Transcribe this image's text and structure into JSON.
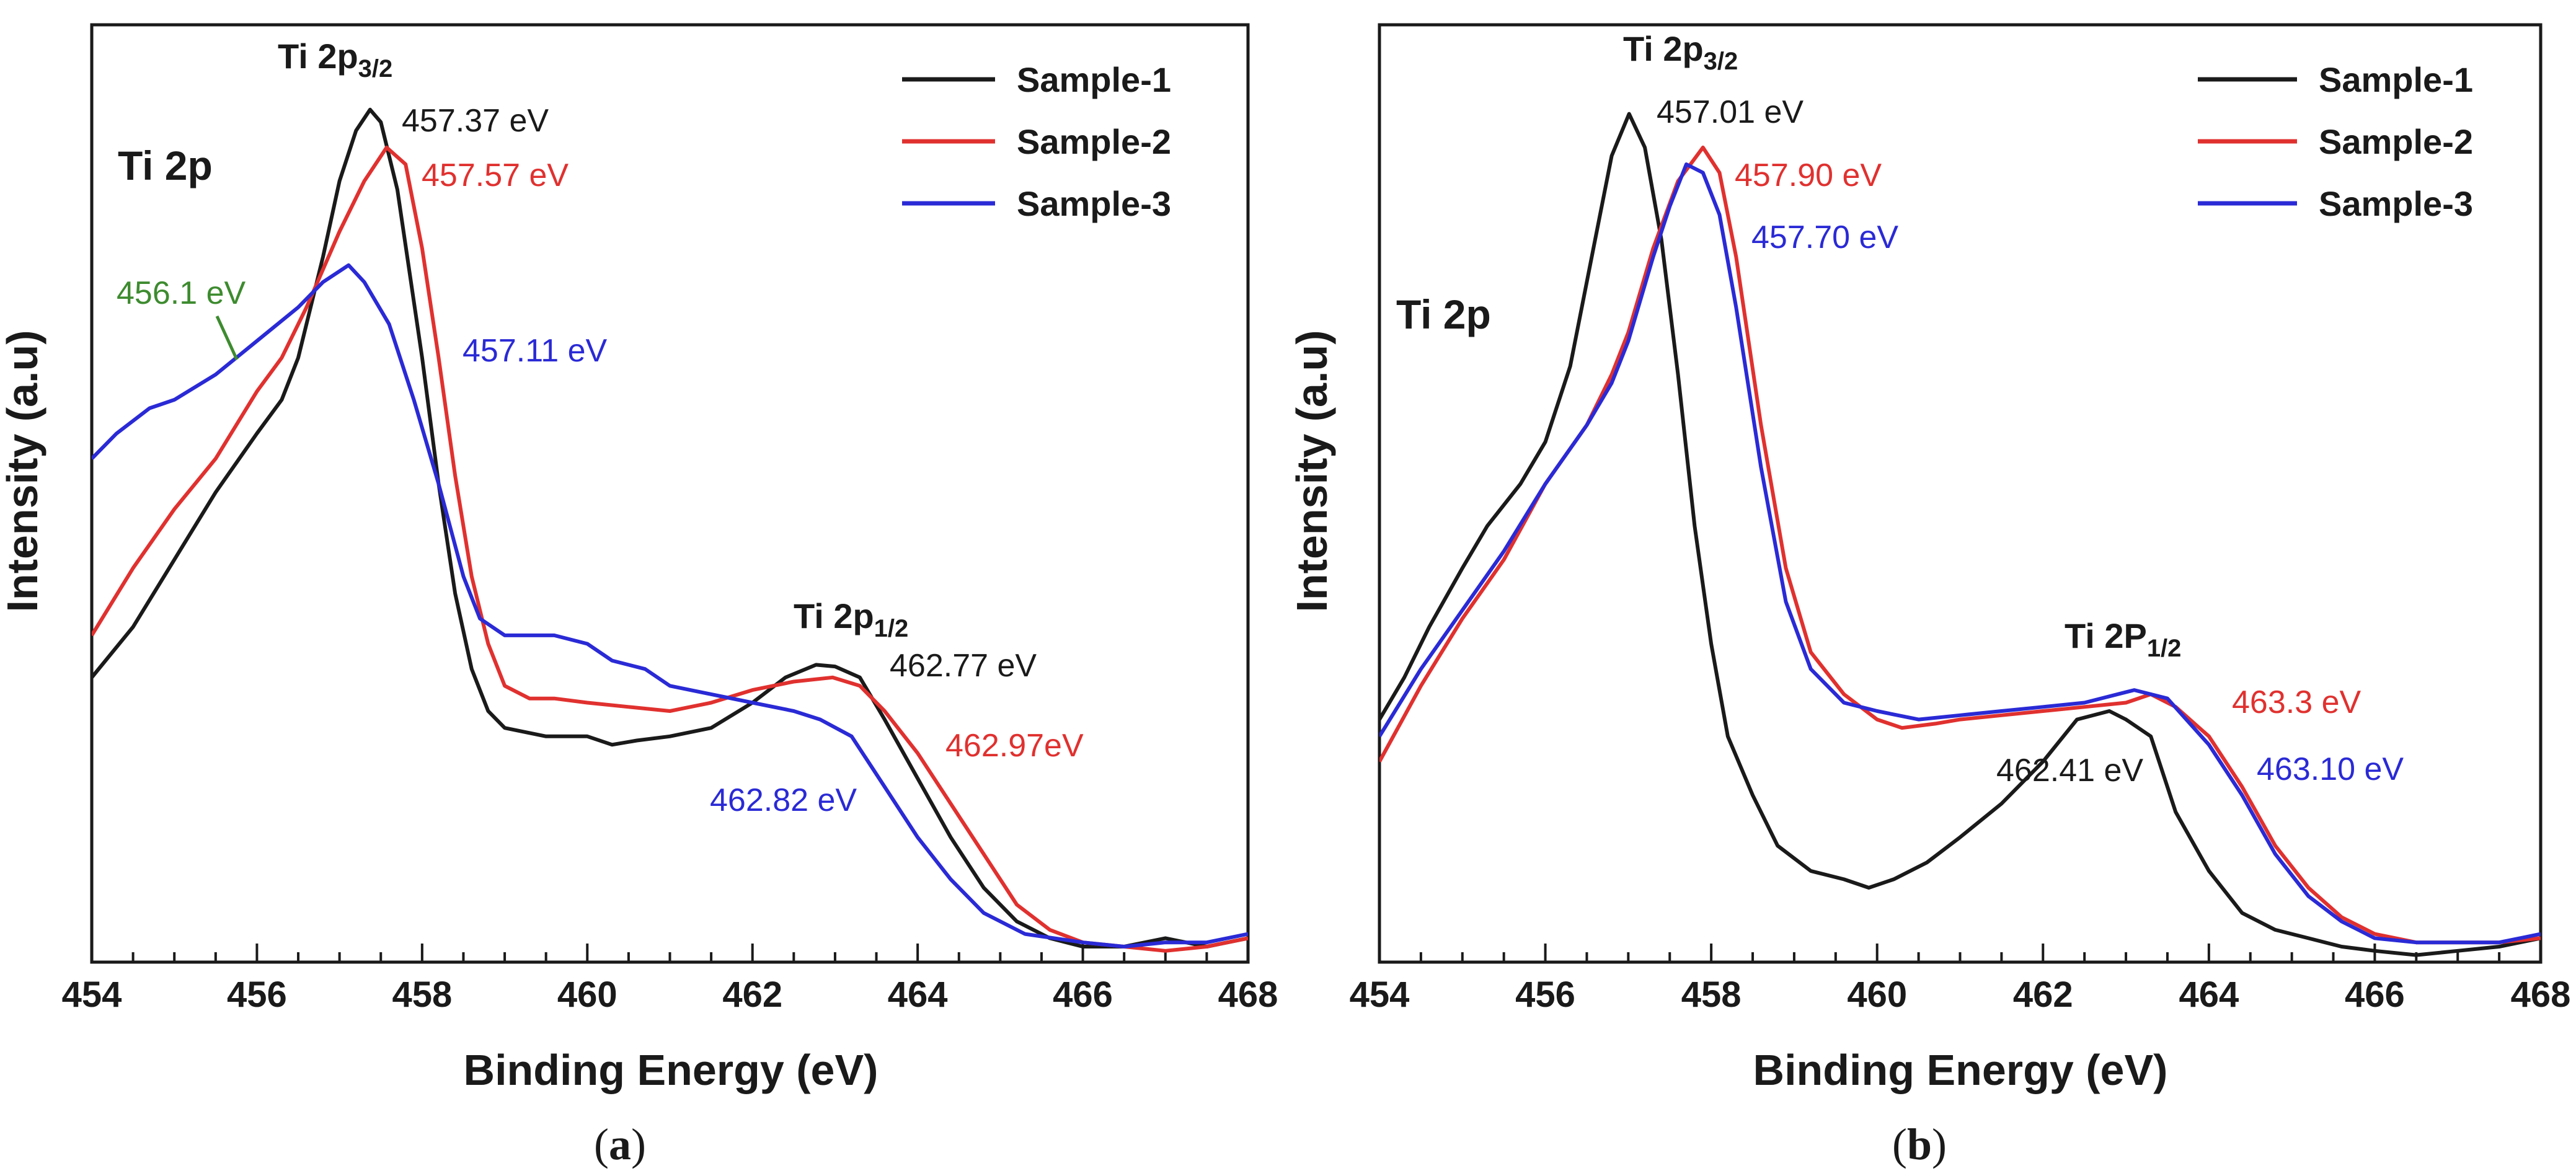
{
  "chart_data": [
    {
      "type": "line",
      "panel": "a",
      "caption_letter": "a",
      "title": "Ti 2p",
      "xlabel": "Binding Energy (eV)",
      "ylabel": "Intensity (a.u)",
      "xlim": [
        454,
        468
      ],
      "ylim": [
        0,
        1.0
      ],
      "xticks": [
        "454",
        "456",
        "458",
        "460",
        "462",
        "464",
        "466",
        "468"
      ],
      "legend_position": "top-right",
      "peak_labels": {
        "p32": {
          "main": "Ti 2p",
          "sub": "3/2",
          "x": 457.4,
          "y": 1.0
        },
        "p12": {
          "main": "Ti 2p",
          "sub": "1/2",
          "x": 462.8,
          "y": 0.43
        }
      },
      "series": [
        {
          "name": "Sample-1",
          "color": "#1a1a1a",
          "points": [
            [
              454.0,
              0.32
            ],
            [
              454.5,
              0.38
            ],
            [
              455.0,
              0.46
            ],
            [
              455.5,
              0.54
            ],
            [
              456.0,
              0.61
            ],
            [
              456.3,
              0.65
            ],
            [
              456.5,
              0.7
            ],
            [
              456.8,
              0.82
            ],
            [
              457.0,
              0.91
            ],
            [
              457.2,
              0.97
            ],
            [
              457.37,
              0.995
            ],
            [
              457.5,
              0.98
            ],
            [
              457.7,
              0.9
            ],
            [
              458.0,
              0.7
            ],
            [
              458.2,
              0.55
            ],
            [
              458.4,
              0.42
            ],
            [
              458.6,
              0.33
            ],
            [
              458.8,
              0.28
            ],
            [
              459.0,
              0.26
            ],
            [
              459.5,
              0.25
            ],
            [
              460.0,
              0.25
            ],
            [
              460.3,
              0.24
            ],
            [
              460.6,
              0.245
            ],
            [
              461.0,
              0.25
            ],
            [
              461.5,
              0.26
            ],
            [
              462.0,
              0.29
            ],
            [
              462.4,
              0.32
            ],
            [
              462.77,
              0.335
            ],
            [
              463.0,
              0.333
            ],
            [
              463.3,
              0.32
            ],
            [
              463.6,
              0.27
            ],
            [
              464.0,
              0.2
            ],
            [
              464.4,
              0.13
            ],
            [
              464.8,
              0.07
            ],
            [
              465.2,
              0.03
            ],
            [
              465.6,
              0.01
            ],
            [
              466.0,
              0.0
            ],
            [
              466.5,
              0.0
            ],
            [
              467.0,
              0.01
            ],
            [
              467.5,
              0.0
            ],
            [
              468.0,
              0.01
            ]
          ]
        },
        {
          "name": "Sample-2",
          "color": "#e0312f",
          "points": [
            [
              454.0,
              0.37
            ],
            [
              454.5,
              0.45
            ],
            [
              455.0,
              0.52
            ],
            [
              455.5,
              0.58
            ],
            [
              456.0,
              0.66
            ],
            [
              456.3,
              0.7
            ],
            [
              456.6,
              0.76
            ],
            [
              457.0,
              0.85
            ],
            [
              457.3,
              0.91
            ],
            [
              457.57,
              0.95
            ],
            [
              457.8,
              0.93
            ],
            [
              458.0,
              0.83
            ],
            [
              458.2,
              0.7
            ],
            [
              458.4,
              0.56
            ],
            [
              458.6,
              0.44
            ],
            [
              458.8,
              0.36
            ],
            [
              459.0,
              0.31
            ],
            [
              459.3,
              0.295
            ],
            [
              459.6,
              0.295
            ],
            [
              460.0,
              0.29
            ],
            [
              460.5,
              0.285
            ],
            [
              461.0,
              0.28
            ],
            [
              461.5,
              0.29
            ],
            [
              462.0,
              0.305
            ],
            [
              462.5,
              0.315
            ],
            [
              462.97,
              0.32
            ],
            [
              463.3,
              0.31
            ],
            [
              463.6,
              0.28
            ],
            [
              464.0,
              0.23
            ],
            [
              464.4,
              0.17
            ],
            [
              464.8,
              0.11
            ],
            [
              465.2,
              0.05
            ],
            [
              465.6,
              0.02
            ],
            [
              466.0,
              0.005
            ],
            [
              466.5,
              0.0
            ],
            [
              467.0,
              -0.005
            ],
            [
              467.5,
              0.0
            ],
            [
              468.0,
              0.01
            ]
          ]
        },
        {
          "name": "Sample-3",
          "color": "#2a2ad6",
          "points": [
            [
              454.0,
              0.58
            ],
            [
              454.3,
              0.61
            ],
            [
              454.7,
              0.64
            ],
            [
              455.0,
              0.65
            ],
            [
              455.5,
              0.68
            ],
            [
              456.0,
              0.72
            ],
            [
              456.5,
              0.76
            ],
            [
              456.8,
              0.79
            ],
            [
              457.11,
              0.81
            ],
            [
              457.3,
              0.79
            ],
            [
              457.6,
              0.74
            ],
            [
              457.9,
              0.65
            ],
            [
              458.2,
              0.55
            ],
            [
              458.5,
              0.44
            ],
            [
              458.7,
              0.39
            ],
            [
              459.0,
              0.37
            ],
            [
              459.3,
              0.37
            ],
            [
              459.6,
              0.37
            ],
            [
              460.0,
              0.36
            ],
            [
              460.3,
              0.34
            ],
            [
              460.7,
              0.33
            ],
            [
              461.0,
              0.31
            ],
            [
              461.5,
              0.3
            ],
            [
              462.0,
              0.29
            ],
            [
              462.5,
              0.28
            ],
            [
              462.82,
              0.27
            ],
            [
              463.2,
              0.25
            ],
            [
              463.6,
              0.19
            ],
            [
              464.0,
              0.13
            ],
            [
              464.4,
              0.08
            ],
            [
              464.8,
              0.04
            ],
            [
              465.3,
              0.015
            ],
            [
              466.0,
              0.005
            ],
            [
              466.5,
              0.0
            ],
            [
              467.0,
              0.005
            ],
            [
              467.5,
              0.005
            ],
            [
              468.0,
              0.015
            ]
          ]
        }
      ],
      "annotations": [
        {
          "text": "457.37 eV",
          "color": "#1a1a1a",
          "x": 457.37,
          "y": 0.995
        },
        {
          "text": "457.57 eV",
          "color": "#e0312f",
          "x": 457.57,
          "y": 0.95
        },
        {
          "text": "457.11 eV",
          "color": "#2a2ad6",
          "x": 458.3,
          "y": 0.7
        },
        {
          "text": "456.1 eV",
          "color": "#3d8b2f",
          "x": 455.8,
          "y": 0.68
        },
        {
          "text": "462.77 eV",
          "color": "#1a1a1a",
          "x": 462.77,
          "y": 0.335
        },
        {
          "text": "462.97eV",
          "color": "#e0312f",
          "x": 463.6,
          "y": 0.27
        },
        {
          "text": "462.82 eV",
          "color": "#2a2ad6",
          "x": 462.82,
          "y": 0.18
        }
      ]
    },
    {
      "type": "line",
      "panel": "b",
      "caption_letter": "b",
      "title": "Ti 2p",
      "xlabel": "Binding Energy (eV)",
      "ylabel": "Intensity (a.u)",
      "xlim": [
        454,
        468
      ],
      "ylim": [
        0,
        1.0
      ],
      "xticks": [
        "454",
        "456",
        "458",
        "460",
        "462",
        "464",
        "466",
        "468"
      ],
      "legend_position": "top-right",
      "peak_labels": {
        "p32": {
          "main": "Ti 2p",
          "sub": "3/2",
          "x": 457.0,
          "y": 1.0
        },
        "p12": {
          "main": "Ti 2P",
          "sub": "1/2",
          "x": 462.6,
          "y": 0.3
        }
      },
      "series": [
        {
          "name": "Sample-1",
          "color": "#1a1a1a",
          "points": [
            [
              454.0,
              0.27
            ],
            [
              454.3,
              0.32
            ],
            [
              454.6,
              0.38
            ],
            [
              455.0,
              0.45
            ],
            [
              455.3,
              0.5
            ],
            [
              455.7,
              0.55
            ],
            [
              456.0,
              0.6
            ],
            [
              456.3,
              0.69
            ],
            [
              456.6,
              0.84
            ],
            [
              456.8,
              0.94
            ],
            [
              457.01,
              0.99
            ],
            [
              457.2,
              0.95
            ],
            [
              457.4,
              0.84
            ],
            [
              457.6,
              0.68
            ],
            [
              457.8,
              0.5
            ],
            [
              458.0,
              0.36
            ],
            [
              458.2,
              0.25
            ],
            [
              458.5,
              0.18
            ],
            [
              458.8,
              0.12
            ],
            [
              459.2,
              0.09
            ],
            [
              459.6,
              0.08
            ],
            [
              459.9,
              0.07
            ],
            [
              460.2,
              0.08
            ],
            [
              460.6,
              0.1
            ],
            [
              461.0,
              0.13
            ],
            [
              461.5,
              0.17
            ],
            [
              462.0,
              0.22
            ],
            [
              462.41,
              0.27
            ],
            [
              462.8,
              0.28
            ],
            [
              463.0,
              0.27
            ],
            [
              463.3,
              0.25
            ],
            [
              463.6,
              0.16
            ],
            [
              464.0,
              0.09
            ],
            [
              464.4,
              0.04
            ],
            [
              464.8,
              0.02
            ],
            [
              465.2,
              0.01
            ],
            [
              465.6,
              0.0
            ],
            [
              466.0,
              -0.005
            ],
            [
              466.5,
              -0.01
            ],
            [
              467.0,
              -0.005
            ],
            [
              467.5,
              0.0
            ],
            [
              468.0,
              0.01
            ]
          ]
        },
        {
          "name": "Sample-2",
          "color": "#e0312f",
          "points": [
            [
              454.0,
              0.22
            ],
            [
              454.5,
              0.31
            ],
            [
              455.0,
              0.39
            ],
            [
              455.5,
              0.46
            ],
            [
              456.0,
              0.55
            ],
            [
              456.5,
              0.62
            ],
            [
              456.8,
              0.68
            ],
            [
              457.0,
              0.73
            ],
            [
              457.3,
              0.83
            ],
            [
              457.6,
              0.91
            ],
            [
              457.9,
              0.95
            ],
            [
              458.1,
              0.92
            ],
            [
              458.3,
              0.82
            ],
            [
              458.6,
              0.62
            ],
            [
              458.9,
              0.45
            ],
            [
              459.2,
              0.35
            ],
            [
              459.6,
              0.3
            ],
            [
              460.0,
              0.27
            ],
            [
              460.3,
              0.26
            ],
            [
              460.7,
              0.265
            ],
            [
              461.0,
              0.27
            ],
            [
              461.5,
              0.275
            ],
            [
              462.0,
              0.28
            ],
            [
              462.5,
              0.285
            ],
            [
              463.0,
              0.29
            ],
            [
              463.3,
              0.3
            ],
            [
              463.6,
              0.285
            ],
            [
              464.0,
              0.25
            ],
            [
              464.4,
              0.19
            ],
            [
              464.8,
              0.12
            ],
            [
              465.2,
              0.07
            ],
            [
              465.6,
              0.035
            ],
            [
              466.0,
              0.015
            ],
            [
              466.5,
              0.005
            ],
            [
              467.0,
              0.005
            ],
            [
              467.5,
              0.005
            ],
            [
              468.0,
              0.01
            ]
          ]
        },
        {
          "name": "Sample-3",
          "color": "#2a2ad6",
          "points": [
            [
              454.0,
              0.25
            ],
            [
              454.5,
              0.33
            ],
            [
              455.0,
              0.4
            ],
            [
              455.5,
              0.47
            ],
            [
              456.0,
              0.55
            ],
            [
              456.5,
              0.62
            ],
            [
              456.8,
              0.67
            ],
            [
              457.0,
              0.72
            ],
            [
              457.3,
              0.82
            ],
            [
              457.5,
              0.88
            ],
            [
              457.7,
              0.93
            ],
            [
              457.9,
              0.92
            ],
            [
              458.1,
              0.87
            ],
            [
              458.3,
              0.76
            ],
            [
              458.6,
              0.57
            ],
            [
              458.9,
              0.41
            ],
            [
              459.2,
              0.33
            ],
            [
              459.6,
              0.29
            ],
            [
              460.0,
              0.28
            ],
            [
              460.5,
              0.27
            ],
            [
              461.0,
              0.275
            ],
            [
              461.5,
              0.28
            ],
            [
              462.0,
              0.285
            ],
            [
              462.5,
              0.29
            ],
            [
              463.1,
              0.305
            ],
            [
              463.5,
              0.295
            ],
            [
              464.0,
              0.24
            ],
            [
              464.4,
              0.18
            ],
            [
              464.8,
              0.11
            ],
            [
              465.2,
              0.06
            ],
            [
              465.6,
              0.03
            ],
            [
              466.0,
              0.01
            ],
            [
              466.5,
              0.005
            ],
            [
              467.0,
              0.005
            ],
            [
              467.5,
              0.005
            ],
            [
              468.0,
              0.015
            ]
          ]
        }
      ],
      "annotations": [
        {
          "text": "457.01 eV",
          "color": "#1a1a1a",
          "x": 457.01,
          "y": 0.99
        },
        {
          "text": "457.90 eV",
          "color": "#e0312f",
          "x": 457.9,
          "y": 0.95
        },
        {
          "text": "457.70 eV",
          "color": "#2a2ad6",
          "x": 458.5,
          "y": 0.84
        },
        {
          "text": "462.41 eV",
          "color": "#1a1a1a",
          "x": 462.0,
          "y": 0.18
        },
        {
          "text": "463.3 eV",
          "color": "#e0312f",
          "x": 463.6,
          "y": 0.285
        },
        {
          "text": "463.10 eV",
          "color": "#2a2ad6",
          "x": 464.4,
          "y": 0.19
        }
      ]
    }
  ]
}
